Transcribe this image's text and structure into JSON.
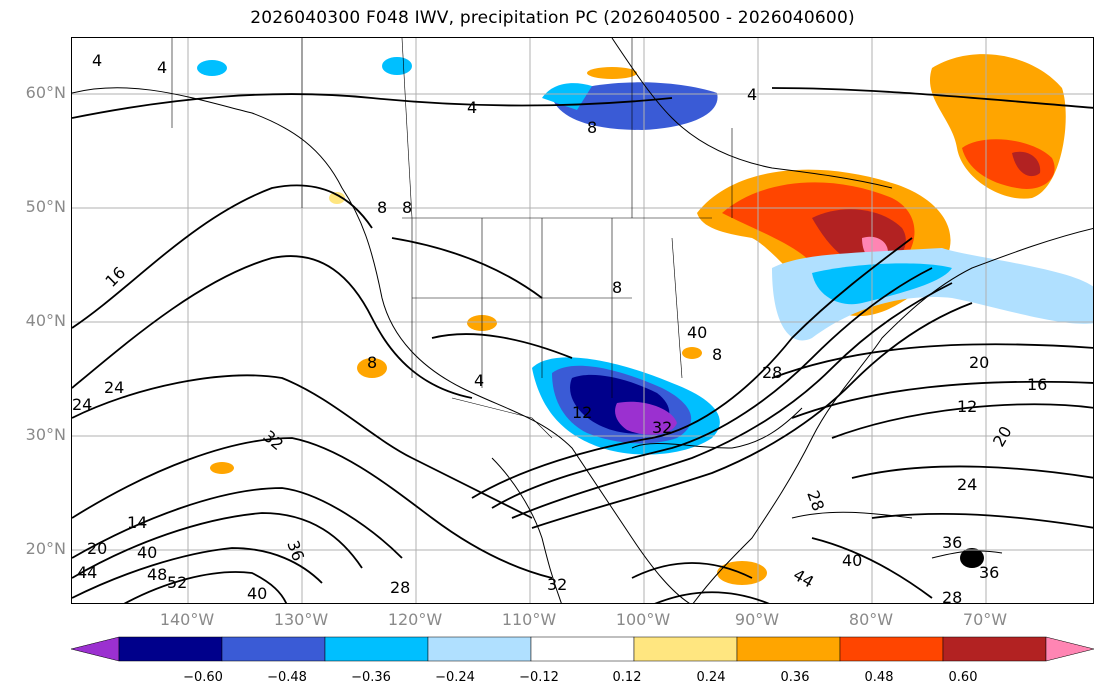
{
  "title": "2026040300 F048 IWV, precipitation PC (2026040500 - 2026040600)",
  "lat_labels": [
    "60°N",
    "50°N",
    "40°N",
    "30°N",
    "20°N"
  ],
  "lon_labels": [
    "140°W",
    "130°W",
    "120°W",
    "110°W",
    "100°W",
    "90°W",
    "80°W",
    "70°W"
  ],
  "colorbar": {
    "tick_labels": [
      "−0.60",
      "−0.48",
      "−0.36",
      "−0.24",
      "−0.12",
      "0.12",
      "0.24",
      "0.36",
      "0.48",
      "0.60"
    ],
    "colors": [
      "#9b30d0",
      "#00008b",
      "#3a5bd6",
      "#00bfff",
      "#b0e0ff",
      "#ffffff",
      "#ffe680",
      "#ffa500",
      "#ff4500",
      "#b22222",
      "#ff85b3"
    ]
  },
  "contour_labels": [
    "4",
    "4",
    "4",
    "4",
    "8",
    "8",
    "8",
    "8",
    "8",
    "8",
    "16",
    "24",
    "24",
    "32",
    "36",
    "40",
    "40",
    "44",
    "48",
    "52",
    "20",
    "14",
    "28",
    "32",
    "28",
    "36",
    "40",
    "44",
    "32",
    "28",
    "20",
    "16",
    "12",
    "20",
    "24",
    "28",
    "36",
    "40",
    "4",
    "12"
  ]
}
